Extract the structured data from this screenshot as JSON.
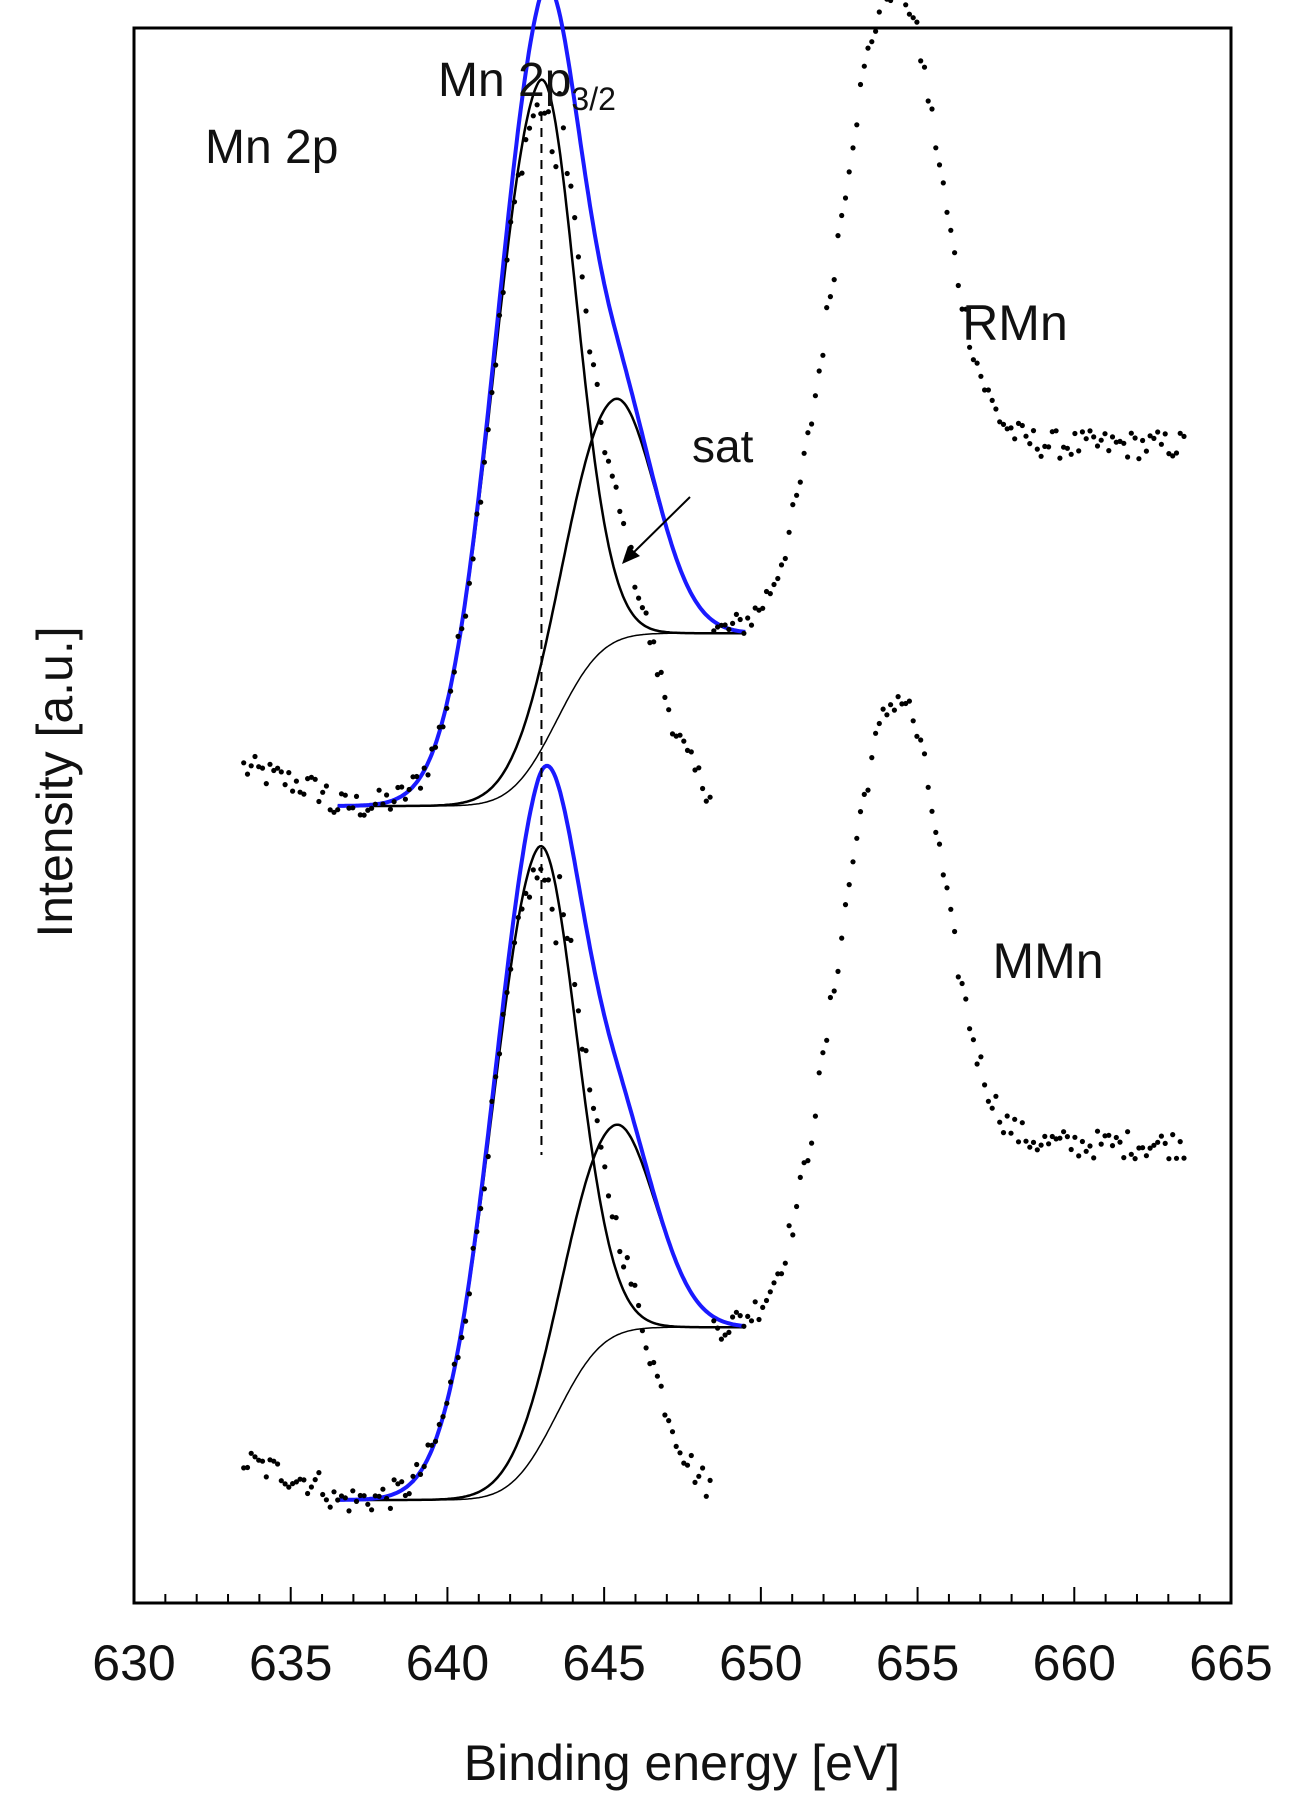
{
  "chart_data": {
    "type": "scatter",
    "title": "",
    "xlabel": "Binding energy [eV]",
    "ylabel": "Intensity [a.u.]",
    "xlim": [
      630,
      665
    ],
    "ylim": [
      0,
      2.1
    ],
    "x_ticks": [
      630,
      635,
      640,
      645,
      650,
      655,
      660,
      665
    ],
    "y_ticks_shown": false,
    "grid": false,
    "legend": "none",
    "annotations": {
      "panel_label": "Mn 2p",
      "peak_label_main": "Mn 2p",
      "peak_label_sub": "3/2",
      "sat_label": "sat",
      "marker_line_x": 643
    },
    "colors": {
      "data": "#000000",
      "envelope": "#1a1aff",
      "components": "#000000"
    },
    "spectra": [
      {
        "name": "RMn",
        "offset": 1.0,
        "data_range": [
          633.5,
          663.5
        ],
        "fit_range": [
          636.5,
          649.5
        ],
        "baseline_step": 0.27,
        "main_peak": {
          "center": 642.9,
          "height": 1.05,
          "sigma_left": 1.5,
          "sigma_right": 1.15
        },
        "satellite": {
          "center": 645.3,
          "height": 0.38,
          "sigma_left": 1.6,
          "sigma_right": 1.3
        },
        "peak_2p12": {
          "center": 654.3,
          "height": 0.72,
          "sigma_left": 1.7,
          "sigma_right": 1.4
        },
        "background": {
          "pre_edge": 0.0,
          "post_edge": 0.7
        }
      },
      {
        "name": "MMn",
        "offset": 0.0,
        "data_range": [
          633.5,
          663.5
        ],
        "fit_range": [
          636.5,
          649.5
        ],
        "baseline_step": 0.27,
        "main_peak": {
          "center": 642.85,
          "height": 0.94,
          "sigma_left": 1.5,
          "sigma_right": 1.2
        },
        "satellite": {
          "center": 645.3,
          "height": 0.33,
          "sigma_left": 1.6,
          "sigma_right": 1.3
        },
        "peak_2p12": {
          "center": 654.4,
          "height": 0.7,
          "sigma_left": 1.7,
          "sigma_right": 1.4
        },
        "background": {
          "pre_edge": 0.0,
          "post_edge": 0.68
        }
      }
    ]
  }
}
